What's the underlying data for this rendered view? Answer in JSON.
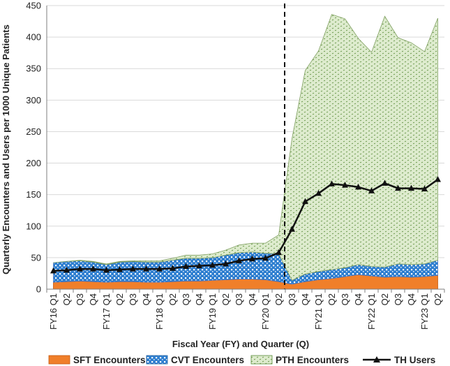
{
  "chart_data": {
    "type": "area",
    "stacked": true,
    "title": "",
    "xlabel": "Fiscal Year (FY) and Quarter (Q)",
    "ylabel": "Quarterly Encounters and Users per 1000 Unique Patients",
    "ylim": [
      0,
      450
    ],
    "yticks": [
      0,
      50,
      100,
      150,
      200,
      250,
      300,
      350,
      400,
      450
    ],
    "categories": [
      "FY16 Q1",
      "Q2",
      "Q3",
      "Q4",
      "FY17 Q1",
      "Q2",
      "Q3",
      "Q4",
      "FY18 Q1",
      "Q2",
      "Q3",
      "Q4",
      "FY19 Q1",
      "Q2",
      "Q3",
      "Q4",
      "FY20 Q1",
      "Q2",
      "Q3",
      "Q4",
      "FY21 Q1",
      "Q2",
      "Q3",
      "Q4",
      "FY22 Q1",
      "Q2",
      "Q3",
      "Q4",
      "FY23 Q1",
      "Q2"
    ],
    "legend_position": "bottom",
    "annotations": [
      "dashed vertical line between FY20 Q2 and Q3"
    ],
    "series": [
      {
        "name": "SFT Encounters",
        "kind": "area",
        "color": "#f07f2a",
        "values": [
          11,
          12,
          13,
          12,
          11,
          12,
          12,
          11,
          11,
          12,
          13,
          13,
          14,
          15,
          16,
          16,
          15,
          12,
          8,
          12,
          15,
          17,
          20,
          23,
          21,
          19,
          20,
          19,
          20,
          22
        ]
      },
      {
        "name": "CVT Encounters",
        "kind": "area",
        "color": "#2f7fd0",
        "values": [
          31,
          32,
          32,
          31,
          28,
          31,
          32,
          32,
          32,
          34,
          36,
          36,
          36,
          39,
          42,
          43,
          42,
          44,
          6,
          12,
          13,
          14,
          14,
          16,
          15,
          16,
          20,
          20,
          20,
          24
        ]
      },
      {
        "name": "PTH Encounters",
        "kind": "area",
        "color": "#bdd7a5",
        "values": [
          0,
          0,
          1,
          1,
          1,
          1,
          1,
          2,
          2,
          3,
          5,
          5,
          6,
          8,
          12,
          14,
          16,
          30,
          225,
          323,
          350,
          405,
          395,
          359,
          340,
          398,
          359,
          352,
          337,
          384
        ]
      },
      {
        "name": "TH Users",
        "kind": "line",
        "color": "#111111",
        "values": [
          29,
          30,
          32,
          32,
          30,
          31,
          32,
          32,
          32,
          33,
          36,
          37,
          38,
          40,
          45,
          48,
          49,
          58,
          95,
          139,
          152,
          167,
          165,
          162,
          156,
          168,
          160,
          160,
          159,
          174
        ]
      }
    ]
  }
}
